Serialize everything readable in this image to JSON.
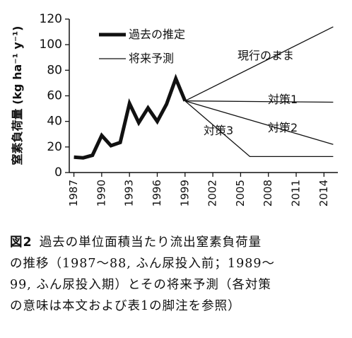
{
  "chart_data": {
    "type": "line",
    "ylabel": "窒素負荷量 (kg ha⁻¹ y⁻¹)",
    "ylim": [
      0,
      120
    ],
    "yticks": [
      0,
      20,
      40,
      60,
      80,
      100,
      120
    ],
    "xlim": [
      1987,
      2015
    ],
    "xticks": [
      1987,
      1990,
      1993,
      1996,
      1999,
      2002,
      2005,
      2008,
      2011,
      2014
    ],
    "legend": {
      "placement": "top-left",
      "entries": [
        {
          "label": "過去の推定",
          "style": "thick"
        },
        {
          "label": "将来予測",
          "style": "thin"
        }
      ]
    },
    "series": [
      {
        "name": "過去の推定",
        "style": "thick",
        "x": [
          1987,
          1988,
          1989,
          1990,
          1991,
          1992,
          1993,
          1994,
          1995,
          1996,
          1997,
          1998,
          1999
        ],
        "y": [
          12,
          11.5,
          13.5,
          29,
          21,
          23.5,
          54,
          39,
          50.5,
          40,
          53.5,
          73.5,
          56
        ]
      },
      {
        "name": "現行のまま",
        "style": "thin",
        "x": [
          1999,
          2015
        ],
        "y": [
          56,
          114
        ]
      },
      {
        "name": "対策1",
        "style": "thin",
        "x": [
          1999,
          2015
        ],
        "y": [
          56,
          55
        ]
      },
      {
        "name": "対策2",
        "style": "thin",
        "x": [
          1999,
          2015
        ],
        "y": [
          56,
          22
        ]
      },
      {
        "name": "対策3",
        "style": "thin",
        "x": [
          1999,
          2006,
          2015
        ],
        "y": [
          56,
          12.5,
          12.5
        ]
      }
    ],
    "annotations": [
      {
        "label": "現行のまま"
      },
      {
        "label": "対策1"
      },
      {
        "label": "対策2"
      },
      {
        "label": "対策3"
      }
    ]
  },
  "caption": {
    "label": "図2",
    "lines": [
      "過去の単位面積当たり流出窒素負荷量",
      "の推移（1987～88, ふん尿投入前；1989～",
      "99, ふん尿投入期）とその将来予測（各対策",
      "の意味は本文および表1の脚注を参照）"
    ]
  }
}
